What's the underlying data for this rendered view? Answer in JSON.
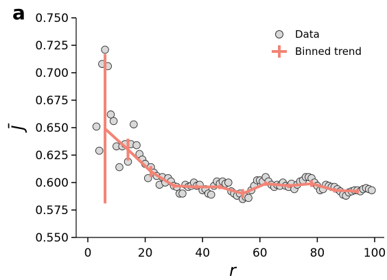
{
  "panel_label": "a",
  "chart_data": {
    "type": "scatter",
    "xlabel": "r",
    "ylabel": "J̄",
    "xlim": [
      -4,
      103
    ],
    "ylim": [
      0.55,
      0.755
    ],
    "xticks": [
      0,
      20,
      40,
      60,
      80,
      100
    ],
    "xtick_labels": [
      "0",
      "20",
      "40",
      "60",
      "80",
      "100"
    ],
    "yticks": [
      0.55,
      0.575,
      0.6,
      0.625,
      0.65,
      0.675,
      0.7,
      0.725,
      0.75
    ],
    "ytick_labels": [
      "0.550",
      "0.575",
      "0.600",
      "0.625",
      "0.650",
      "0.675",
      "0.700",
      "0.725",
      "0.750"
    ],
    "grid": false,
    "legend_position": "top-right",
    "legend": [
      {
        "label": "Data",
        "marker": "circle",
        "color": "#d9d9d9"
      },
      {
        "label": "Binned trend",
        "marker": "errorbar-line",
        "color": "#f28476"
      }
    ],
    "colors": {
      "points_fill": "#d9d9d9",
      "points_edge": "#333333",
      "trend": "#f28476"
    },
    "series": [
      {
        "name": "Data",
        "kind": "scatter",
        "x": [
          3,
          4,
          5,
          6,
          7,
          8,
          9,
          10,
          11,
          12,
          13,
          14,
          15,
          16,
          17,
          18,
          19,
          20,
          21,
          22,
          23,
          24,
          25,
          26,
          27,
          28,
          29,
          30,
          31,
          32,
          33,
          34,
          35,
          36,
          37,
          38,
          39,
          40,
          41,
          42,
          43,
          44,
          45,
          46,
          47,
          48,
          49,
          50,
          51,
          52,
          53,
          54,
          55,
          56,
          57,
          58,
          59,
          60,
          61,
          62,
          63,
          64,
          65,
          66,
          67,
          68,
          69,
          70,
          71,
          72,
          73,
          74,
          75,
          76,
          77,
          78,
          79,
          80,
          81,
          82,
          83,
          84,
          85,
          86,
          87,
          88,
          89,
          90,
          91,
          92,
          93,
          94,
          95,
          96,
          97,
          98,
          99
        ],
        "y": [
          0.651,
          0.629,
          0.708,
          0.721,
          0.706,
          0.662,
          0.656,
          0.633,
          0.614,
          0.633,
          0.635,
          0.619,
          0.635,
          0.653,
          0.634,
          0.626,
          0.621,
          0.617,
          0.604,
          0.614,
          0.609,
          0.606,
          0.598,
          0.605,
          0.6,
          0.604,
          0.601,
          0.597,
          0.596,
          0.59,
          0.59,
          0.598,
          0.596,
          0.597,
          0.6,
          0.597,
          0.598,
          0.593,
          0.594,
          0.59,
          0.589,
          0.597,
          0.601,
          0.599,
          0.601,
          0.599,
          0.6,
          0.592,
          0.59,
          0.588,
          0.59,
          0.585,
          0.587,
          0.586,
          0.593,
          0.597,
          0.602,
          0.602,
          0.601,
          0.605,
          0.601,
          0.598,
          0.596,
          0.598,
          0.597,
          0.6,
          0.597,
          0.596,
          0.599,
          0.594,
          0.598,
          0.601,
          0.602,
          0.605,
          0.605,
          0.604,
          0.6,
          0.597,
          0.593,
          0.594,
          0.598,
          0.597,
          0.596,
          0.596,
          0.594,
          0.592,
          0.589,
          0.588,
          0.591,
          0.592,
          0.593,
          0.593,
          0.592,
          0.594,
          0.595,
          0.594,
          0.593
        ]
      },
      {
        "name": "Binned trend",
        "kind": "line-errorbar",
        "x": [
          6,
          14,
          22,
          30,
          38,
          46,
          54,
          62,
          70,
          78,
          86,
          94
        ],
        "y": [
          0.649,
          0.63,
          0.61,
          0.597,
          0.596,
          0.596,
          0.59,
          0.599,
          0.597,
          0.599,
          0.593,
          0.592
        ],
        "yerr": [
          0.068,
          0.01,
          0.005,
          0.002,
          0.002,
          0.002,
          0.004,
          0.002,
          0.002,
          0.003,
          0.002,
          0.002
        ]
      }
    ]
  }
}
